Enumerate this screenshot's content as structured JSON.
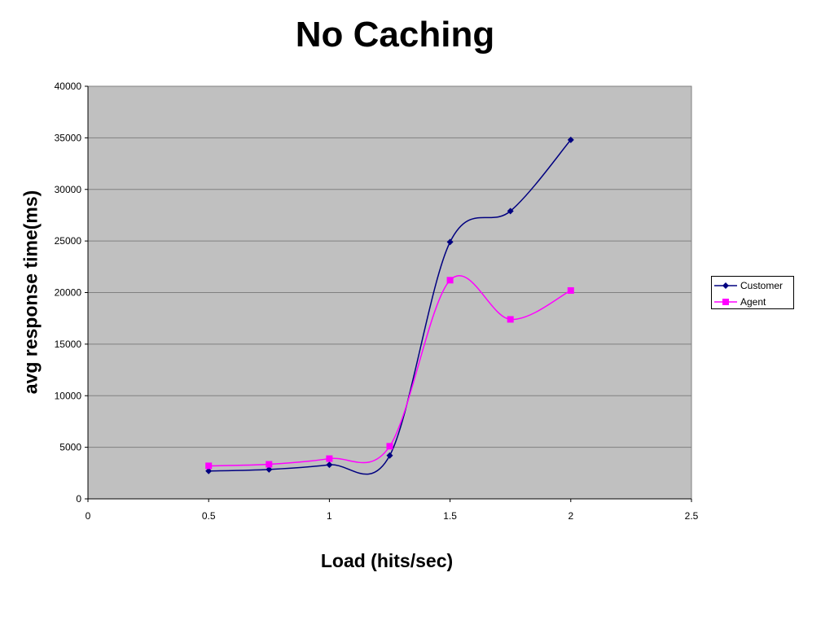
{
  "chart_data": {
    "type": "line",
    "title": "No Caching",
    "xlabel": "Load (hits/sec)",
    "ylabel": "avg response time(ms)",
    "xlim": [
      0,
      2.5
    ],
    "ylim": [
      0,
      40000
    ],
    "x_ticks": [
      "0",
      "0.5",
      "1",
      "1.5",
      "2",
      "2.5"
    ],
    "y_ticks": [
      "0",
      "5000",
      "10000",
      "15000",
      "20000",
      "25000",
      "30000",
      "35000",
      "40000"
    ],
    "grid": "horizontal",
    "smoothed": true,
    "legend_position": "right",
    "plot_background": "#C0C0C0",
    "series": [
      {
        "name": "Customer",
        "color": "#000080",
        "marker": "diamond",
        "x": [
          0.5,
          0.75,
          1.0,
          1.25,
          1.5,
          1.75,
          2.0
        ],
        "values": [
          2700,
          2850,
          3300,
          4200,
          24900,
          27900,
          34800
        ]
      },
      {
        "name": "Agent",
        "color": "#FF00FF",
        "marker": "square",
        "x": [
          0.5,
          0.75,
          1.0,
          1.25,
          1.5,
          1.75,
          2.0
        ],
        "values": [
          3200,
          3350,
          3900,
          5100,
          21200,
          17400,
          20200
        ]
      }
    ]
  }
}
